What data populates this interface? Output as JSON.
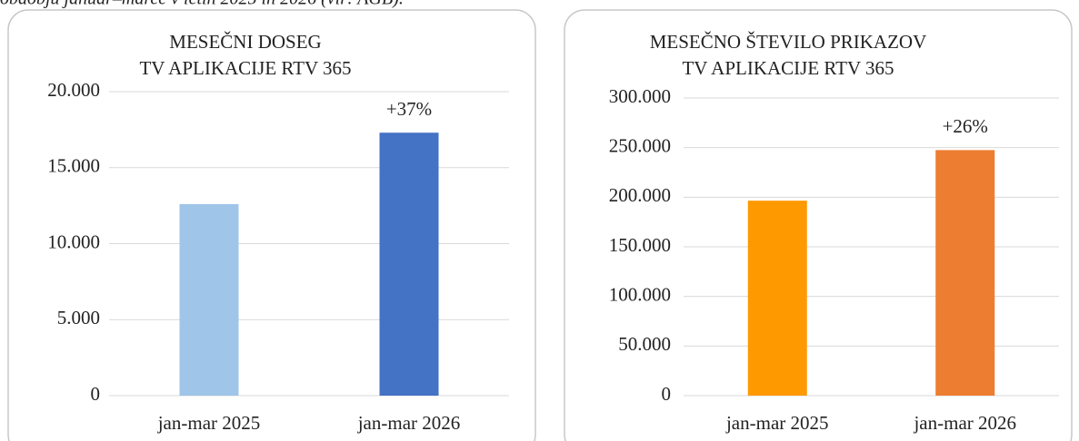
{
  "caption": "obdobju januar–marec v letih 2025 in 2026 (vir: AGB).",
  "chart_data": [
    {
      "type": "bar",
      "title": [
        "MESEČNI DOSEG",
        "TV APLIKACIJE RTV 365"
      ],
      "categories": [
        "jan-mar 2025",
        "jan-mar 2026"
      ],
      "values": [
        12600,
        17300
      ],
      "colors": [
        "#9fc5e8",
        "#4472c4"
      ],
      "annotations": [
        "+37%"
      ],
      "ylim": [
        0,
        20000
      ],
      "yticks": [
        0,
        {
          "value": 5000,
          "label": "5.000"
        },
        {
          "value": 10000,
          "label": "10.000"
        },
        {
          "value": 15000,
          "label": "15.000"
        },
        {
          "value": 20000,
          "label": "20.000"
        }
      ],
      "grid": true
    },
    {
      "type": "bar",
      "title": [
        "MESEČNO ŠTEVILO PRIKAZOV",
        "TV APLIKACIJE RTV 365"
      ],
      "categories": [
        "jan-mar 2025",
        "jan-mar 2026"
      ],
      "values": [
        196500,
        247500
      ],
      "colors": [
        "#ff9900",
        "#ed7d31"
      ],
      "annotations": [
        "+26%"
      ],
      "ylim": [
        0,
        300000
      ],
      "yticks": [
        0,
        {
          "value": 50000,
          "label": "50.000"
        },
        {
          "value": 100000,
          "label": "100.000"
        },
        {
          "value": 150000,
          "label": "150.000"
        },
        {
          "value": 200000,
          "label": "200.000"
        },
        {
          "value": 250000,
          "label": "250.000"
        },
        {
          "value": 300000,
          "label": "300.000"
        }
      ],
      "grid": true
    }
  ]
}
